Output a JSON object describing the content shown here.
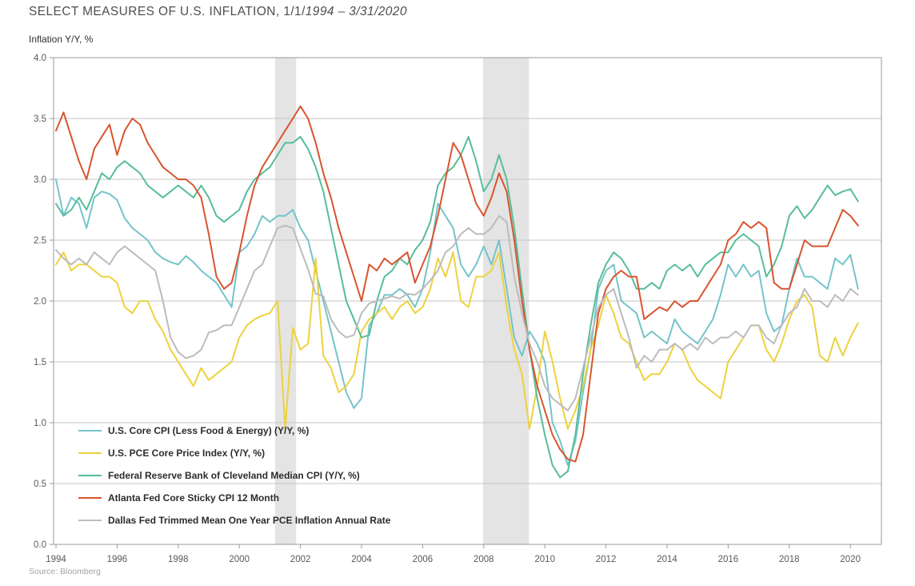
{
  "title": {
    "text": "SELECT MEASURES OF U.S. INFLATION, 1/1/",
    "italic": "1994 – 3/31/2020"
  },
  "subtitle": "Inflation Y/Y, %",
  "source": "Source: Bloomberg",
  "chart_data": {
    "type": "line",
    "title": "SELECT MEASURES OF U.S. INFLATION, 1/1/1994 – 3/31/2020",
    "ylabel": "Inflation Y/Y, %",
    "x_start": 1994.0,
    "x_step": 0.25,
    "x_end": 2020.25,
    "xlim": [
      1993.9,
      2021.0
    ],
    "ylim": [
      0.0,
      4.0
    ],
    "ytick_step": 0.5,
    "xticks": [
      1994,
      1996,
      1998,
      2000,
      2002,
      2004,
      2006,
      2008,
      2010,
      2012,
      2014,
      2016,
      2018,
      2020
    ],
    "grid": "horizontal",
    "grid_color": "#c6c6c6",
    "border_color": "#9a9a9a",
    "tick_label_color": "#5a5a5a",
    "legend_position": "inside-lower-left",
    "recession_bands": [
      [
        2001.17,
        2001.86
      ],
      [
        2007.98,
        2009.48
      ]
    ],
    "band_color": "#e4e4e4",
    "series": [
      {
        "name": "U.S. Core CPI (Less Food & Energy) (Y/Y, %)",
        "color": "#74c4ca",
        "values": [
          3.0,
          2.7,
          2.85,
          2.8,
          2.6,
          2.85,
          2.9,
          2.88,
          2.83,
          2.68,
          2.6,
          2.55,
          2.5,
          2.4,
          2.35,
          2.32,
          2.3,
          2.37,
          2.32,
          2.25,
          2.2,
          2.15,
          2.05,
          1.95,
          2.4,
          2.45,
          2.55,
          2.7,
          2.65,
          2.7,
          2.7,
          2.75,
          2.6,
          2.5,
          2.25,
          2.0,
          1.75,
          1.5,
          1.25,
          1.12,
          1.2,
          1.8,
          1.9,
          2.05,
          2.05,
          2.1,
          2.05,
          1.95,
          2.1,
          2.4,
          2.8,
          2.7,
          2.6,
          2.3,
          2.2,
          2.3,
          2.45,
          2.3,
          2.5,
          2.1,
          1.7,
          1.55,
          1.75,
          1.65,
          1.5,
          1.0,
          0.85,
          0.65,
          0.85,
          1.25,
          1.6,
          2.1,
          2.25,
          2.3,
          2.0,
          1.95,
          1.9,
          1.7,
          1.75,
          1.7,
          1.65,
          1.85,
          1.75,
          1.7,
          1.65,
          1.75,
          1.85,
          2.05,
          2.3,
          2.2,
          2.3,
          2.2,
          2.25,
          1.9,
          1.75,
          1.8,
          2.1,
          2.35,
          2.2,
          2.2,
          2.15,
          2.1,
          2.35,
          2.3,
          2.38,
          2.1
        ]
      },
      {
        "name": "U.S. PCE Core Price Index (Y/Y, %)",
        "color": "#edd23d",
        "values": [
          2.3,
          2.4,
          2.25,
          2.3,
          2.3,
          2.25,
          2.2,
          2.2,
          2.15,
          1.95,
          1.9,
          2.0,
          2.0,
          1.85,
          1.75,
          1.6,
          1.5,
          1.4,
          1.3,
          1.45,
          1.35,
          1.4,
          1.45,
          1.5,
          1.7,
          1.8,
          1.85,
          1.88,
          1.9,
          2.0,
          0.95,
          1.78,
          1.6,
          1.65,
          2.35,
          1.55,
          1.45,
          1.25,
          1.3,
          1.4,
          1.75,
          1.85,
          1.9,
          1.95,
          1.85,
          1.95,
          2.0,
          1.9,
          1.95,
          2.1,
          2.35,
          2.2,
          2.4,
          2.0,
          1.95,
          2.2,
          2.2,
          2.25,
          2.4,
          1.95,
          1.6,
          1.4,
          0.95,
          1.3,
          1.75,
          1.5,
          1.2,
          0.95,
          1.1,
          1.3,
          1.6,
          1.8,
          2.05,
          1.9,
          1.7,
          1.65,
          1.5,
          1.35,
          1.4,
          1.4,
          1.5,
          1.65,
          1.6,
          1.45,
          1.35,
          1.3,
          1.25,
          1.2,
          1.5,
          1.6,
          1.7,
          1.8,
          1.8,
          1.6,
          1.5,
          1.65,
          1.85,
          2.0,
          2.05,
          1.95,
          1.55,
          1.5,
          1.7,
          1.55,
          1.7,
          1.82
        ]
      },
      {
        "name": "Federal Reserve Bank of Cleveland Median CPI (Y/Y, %)",
        "color": "#57bd9b",
        "values": [
          2.8,
          2.7,
          2.75,
          2.85,
          2.75,
          2.9,
          3.05,
          3.0,
          3.1,
          3.15,
          3.1,
          3.05,
          2.95,
          2.9,
          2.85,
          2.9,
          2.95,
          2.9,
          2.85,
          2.95,
          2.85,
          2.7,
          2.65,
          2.7,
          2.75,
          2.9,
          3.0,
          3.05,
          3.1,
          3.2,
          3.3,
          3.3,
          3.35,
          3.25,
          3.1,
          2.9,
          2.6,
          2.3,
          2.0,
          1.85,
          1.7,
          1.72,
          2.0,
          2.2,
          2.25,
          2.35,
          2.3,
          2.42,
          2.5,
          2.65,
          2.95,
          3.05,
          3.1,
          3.2,
          3.35,
          3.15,
          2.9,
          3.0,
          3.2,
          3.0,
          2.6,
          2.1,
          1.6,
          1.2,
          0.9,
          0.65,
          0.55,
          0.6,
          0.9,
          1.4,
          1.8,
          2.15,
          2.3,
          2.4,
          2.35,
          2.25,
          2.1,
          2.1,
          2.15,
          2.1,
          2.25,
          2.3,
          2.25,
          2.3,
          2.2,
          2.3,
          2.35,
          2.4,
          2.4,
          2.5,
          2.55,
          2.5,
          2.45,
          2.2,
          2.3,
          2.45,
          2.7,
          2.78,
          2.68,
          2.75,
          2.85,
          2.95,
          2.87,
          2.9,
          2.92,
          2.82
        ]
      },
      {
        "name": "Atlanta Fed Core Sticky CPI 12 Month",
        "color": "#d9542f",
        "values": [
          3.4,
          3.55,
          3.35,
          3.15,
          3.0,
          3.25,
          3.35,
          3.45,
          3.2,
          3.4,
          3.5,
          3.45,
          3.3,
          3.2,
          3.1,
          3.05,
          3.0,
          3.0,
          2.95,
          2.85,
          2.55,
          2.2,
          2.1,
          2.15,
          2.4,
          2.7,
          2.95,
          3.1,
          3.2,
          3.3,
          3.4,
          3.5,
          3.6,
          3.5,
          3.3,
          3.05,
          2.85,
          2.6,
          2.4,
          2.2,
          2.0,
          2.3,
          2.25,
          2.35,
          2.3,
          2.35,
          2.4,
          2.15,
          2.3,
          2.45,
          2.7,
          3.0,
          3.3,
          3.2,
          3.0,
          2.8,
          2.7,
          2.85,
          3.05,
          2.9,
          2.5,
          2.0,
          1.6,
          1.3,
          1.1,
          0.9,
          0.78,
          0.7,
          0.68,
          0.9,
          1.4,
          1.9,
          2.1,
          2.2,
          2.25,
          2.2,
          2.2,
          1.85,
          1.9,
          1.95,
          1.92,
          2.0,
          1.95,
          2.0,
          2.0,
          2.1,
          2.2,
          2.3,
          2.5,
          2.55,
          2.65,
          2.6,
          2.65,
          2.6,
          2.15,
          2.1,
          2.1,
          2.3,
          2.5,
          2.45,
          2.45,
          2.45,
          2.6,
          2.75,
          2.7,
          2.62
        ]
      },
      {
        "name": "Dallas Fed Trimmed Mean One Year PCE Inflation Annual Rate",
        "color": "#bcbcbc",
        "values": [
          2.42,
          2.35,
          2.3,
          2.35,
          2.3,
          2.4,
          2.35,
          2.3,
          2.4,
          2.45,
          2.4,
          2.35,
          2.3,
          2.25,
          2.0,
          1.7,
          1.58,
          1.53,
          1.55,
          1.6,
          1.74,
          1.76,
          1.8,
          1.8,
          1.95,
          2.1,
          2.25,
          2.3,
          2.45,
          2.6,
          2.62,
          2.6,
          2.43,
          2.26,
          2.06,
          2.04,
          1.85,
          1.75,
          1.7,
          1.72,
          1.9,
          1.98,
          2.0,
          2.02,
          2.04,
          2.02,
          2.06,
          2.05,
          2.1,
          2.17,
          2.25,
          2.4,
          2.45,
          2.55,
          2.6,
          2.55,
          2.55,
          2.6,
          2.7,
          2.65,
          2.2,
          1.9,
          1.65,
          1.5,
          1.3,
          1.2,
          1.15,
          1.1,
          1.2,
          1.45,
          1.7,
          1.95,
          2.05,
          2.1,
          1.9,
          1.7,
          1.45,
          1.55,
          1.5,
          1.6,
          1.6,
          1.65,
          1.6,
          1.65,
          1.6,
          1.7,
          1.65,
          1.7,
          1.7,
          1.75,
          1.7,
          1.8,
          1.8,
          1.7,
          1.65,
          1.8,
          1.9,
          1.95,
          2.1,
          2.0,
          2.0,
          1.95,
          2.05,
          2.0,
          2.1,
          2.05
        ]
      }
    ]
  }
}
